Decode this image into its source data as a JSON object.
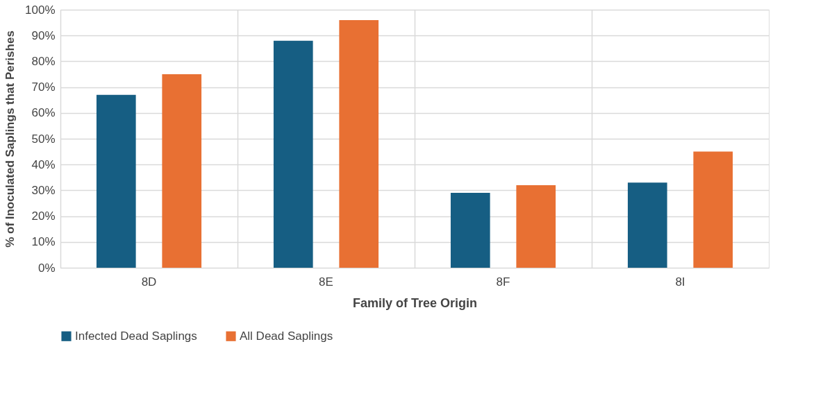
{
  "chart_data": {
    "type": "bar",
    "xlabel": "Family of Tree Origin",
    "ylabel": "% of Inoculated Saplings that Perishes",
    "categories": [
      "8D",
      "8E",
      "8F",
      "8I"
    ],
    "series": [
      {
        "name": "Infected Dead Saplings",
        "color": "#165e83",
        "values": [
          67,
          88,
          29,
          33
        ]
      },
      {
        "name": "All Dead Saplings",
        "color": "#e87033",
        "values": [
          75,
          96,
          32,
          45
        ]
      }
    ],
    "ylim": [
      0,
      100
    ],
    "yticks": [
      {
        "value": 0,
        "label": "0%"
      },
      {
        "value": 10,
        "label": "10%"
      },
      {
        "value": 20,
        "label": "20%"
      },
      {
        "value": 30,
        "label": "30%"
      },
      {
        "value": 40,
        "label": "40%"
      },
      {
        "value": 50,
        "label": "50%"
      },
      {
        "value": 60,
        "label": "60%"
      },
      {
        "value": 70,
        "label": "70%"
      },
      {
        "value": 80,
        "label": "80%"
      },
      {
        "value": 90,
        "label": "90%"
      },
      {
        "value": 100,
        "label": "100%"
      }
    ],
    "grid": true,
    "legend": "bottom"
  }
}
